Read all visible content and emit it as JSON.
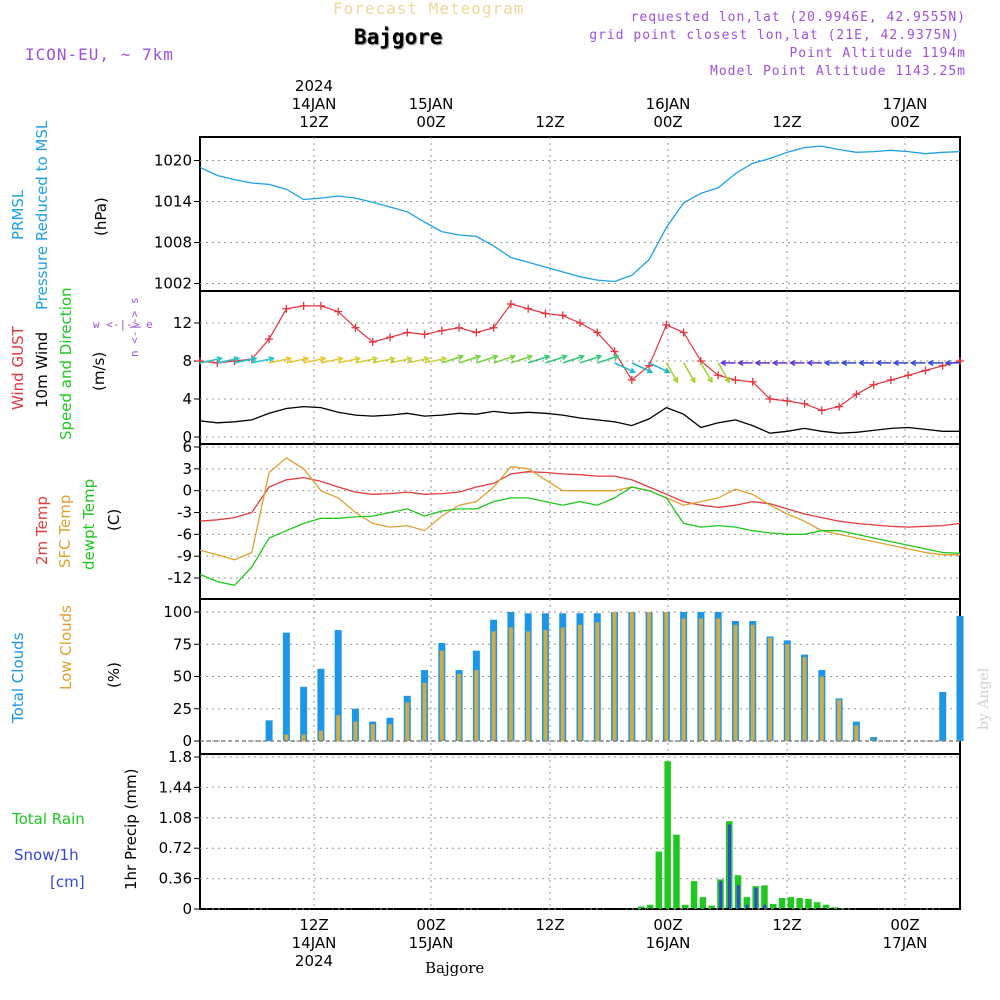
{
  "header": {
    "title": "Forecast Meteogram",
    "location": "Bajgore",
    "model": "ICON-EU, ~ 7km",
    "requested": "requested lon,lat (20.9946E, 42.9555N)",
    "grid_point": "grid point closest lon,lat (21E, 42.9375N)",
    "point_altitude": "Point Altitude 1194m",
    "model_altitude": "Model Point Altitude 1143.25m",
    "footer_location": "Bajgore",
    "watermark": "by Angel",
    "wind_key": "w <-|-> e",
    "wind_key_ns": "n <-|-> s"
  },
  "top_time_labels": [
    {
      "line1": "2024",
      "line2": "14JAN",
      "line3": "12Z"
    },
    {
      "line1": "",
      "line2": "15JAN",
      "line3": "00Z"
    },
    {
      "line1": "",
      "line2": "",
      "line3": "12Z"
    },
    {
      "line1": "",
      "line2": "16JAN",
      "line3": "00Z"
    },
    {
      "line1": "",
      "line2": "",
      "line3": "12Z"
    },
    {
      "line1": "",
      "line2": "17JAN",
      "line3": "00Z"
    }
  ],
  "bottom_time_labels": [
    {
      "line1": "12Z",
      "line2": "14JAN",
      "line3": "2024"
    },
    {
      "line1": "00Z",
      "line2": "15JAN",
      "line3": ""
    },
    {
      "line1": "12Z",
      "line2": "",
      "line3": ""
    },
    {
      "line1": "00Z",
      "line2": "16JAN",
      "line3": ""
    },
    {
      "line1": "12Z",
      "line2": "",
      "line3": ""
    },
    {
      "line1": "00Z",
      "line2": "17JAN",
      "line3": ""
    }
  ],
  "panel_labels": {
    "pressure": {
      "title": "PRMSL",
      "subtitle": "Pressure Reduced to MSL",
      "unit": "(hPa)"
    },
    "wind": {
      "gust": "Wind GUST",
      "wind": "10m Wind",
      "speed": "Speed and Direction",
      "unit": "(m/s)"
    },
    "temp": {
      "t2m": "2m Temp",
      "sfc": "SFC Temp",
      "dewpt": "dewpt Temp",
      "unit": "(C)"
    },
    "clouds": {
      "total": "Total Clouds",
      "low": "Low Clouds",
      "unit": "(%)"
    },
    "precip": {
      "rain": "Total  Rain",
      "snow": "Snow/1h",
      "cm": "[cm]",
      "unit": "1hr Precip (mm)"
    }
  },
  "colors": {
    "pressure": "#1ea0e6",
    "gust": "#e6323c",
    "wind": "#000000",
    "t2m": "#e63c3c",
    "sfc": "#e0a030",
    "dewpt": "#1ec81e",
    "total_cloud": "#1e96e6",
    "low_cloud": "#d2aa46",
    "rain": "#1ec81e",
    "snow": "#3246dc",
    "title": "#f0d79b",
    "info": "#a050dc"
  },
  "chart_data": [
    {
      "type": "line",
      "name": "pressure",
      "title": "PRMSL Pressure Reduced to MSL",
      "ylabel": "hPa",
      "ylim": [
        1001,
        1024
      ],
      "yticks": [
        1002,
        1008,
        1014,
        1020
      ],
      "x_hours": [
        0,
        3,
        6,
        9,
        12,
        15,
        18,
        21,
        24,
        27,
        30,
        33,
        36,
        39,
        42,
        45,
        48,
        51,
        54,
        57,
        60,
        63,
        66,
        69,
        72,
        75,
        78,
        81,
        84,
        87,
        90,
        93,
        96,
        99,
        102,
        105,
        108,
        111,
        114,
        117,
        120,
        123,
        126,
        129,
        132
      ],
      "series": [
        {
          "name": "PRMSL",
          "values": [
            1019,
            1017.8,
            1017.2,
            1016.7,
            1016.5,
            1015.8,
            1014.3,
            1014.5,
            1014.8,
            1014.5,
            1013.9,
            1013.2,
            1012.5,
            1011,
            1009.6,
            1009.1,
            1008.9,
            1007.5,
            1005.8,
            1005.1,
            1004.4,
            1003.7,
            1003.0,
            1002.5,
            1002.3,
            1003.2,
            1005.5,
            1010.2,
            1013.8,
            1015.2,
            1016.0,
            1018.1,
            1019.6,
            1020.3,
            1021.2,
            1021.9,
            1022.1,
            1021.6,
            1021.2,
            1021.3,
            1021.5,
            1021.3,
            1021.0,
            1021.2,
            1021.3
          ]
        }
      ]
    },
    {
      "type": "line",
      "name": "wind",
      "title": "Wind GUST / 10m Wind",
      "ylabel": "m/s",
      "ylim": [
        -0.5,
        15
      ],
      "yticks": [
        0,
        4,
        8,
        12
      ],
      "x_hours": [
        0,
        3,
        6,
        9,
        12,
        15,
        18,
        21,
        24,
        27,
        30,
        33,
        36,
        39,
        42,
        45,
        48,
        51,
        54,
        57,
        60,
        63,
        66,
        69,
        72,
        75,
        78,
        81,
        84,
        87,
        90,
        93,
        96,
        99,
        102,
        105,
        108,
        111,
        114,
        117,
        120,
        123,
        126,
        129,
        132
      ],
      "series": [
        {
          "name": "Wind GUST",
          "values": [
            8.0,
            7.8,
            8.0,
            8.2,
            10.3,
            13.5,
            13.8,
            13.8,
            13.2,
            11.5,
            10.0,
            10.5,
            11.0,
            10.8,
            11.2,
            11.5,
            11.0,
            11.5,
            14.0,
            13.5,
            13.0,
            12.8,
            12.0,
            11.0,
            9.0,
            6.0,
            7.5,
            11.8,
            11.0,
            8.0,
            6.5,
            6.0,
            5.8,
            4.0,
            3.8,
            3.5,
            2.8,
            3.2,
            4.5,
            5.5,
            6.0,
            6.5,
            7.0,
            7.5,
            8.0
          ]
        },
        {
          "name": "10m Wind",
          "values": [
            1.7,
            1.5,
            1.6,
            1.8,
            2.5,
            3.0,
            3.2,
            3.1,
            2.6,
            2.3,
            2.2,
            2.3,
            2.5,
            2.2,
            2.3,
            2.5,
            2.4,
            2.7,
            2.5,
            2.6,
            2.5,
            2.3,
            2.0,
            1.8,
            1.6,
            1.2,
            1.9,
            3.1,
            2.4,
            1.0,
            1.5,
            1.8,
            1.2,
            0.4,
            0.6,
            0.9,
            0.6,
            0.4,
            0.5,
            0.7,
            0.9,
            1.0,
            0.8,
            0.6,
            0.6
          ]
        }
      ]
    },
    {
      "type": "line",
      "name": "temperature",
      "title": "2m / SFC / dewpt Temp",
      "ylabel": "C",
      "ylim": [
        -14,
        6
      ],
      "yticks": [
        -12,
        -9,
        -6,
        -3,
        0,
        3,
        6
      ],
      "x_hours": [
        0,
        3,
        6,
        9,
        12,
        15,
        18,
        21,
        24,
        27,
        30,
        33,
        36,
        39,
        42,
        45,
        48,
        51,
        54,
        57,
        60,
        63,
        66,
        69,
        72,
        75,
        78,
        81,
        84,
        87,
        90,
        93,
        96,
        99,
        102,
        105,
        108,
        111,
        114,
        117,
        120,
        123,
        126,
        129,
        132
      ],
      "series": [
        {
          "name": "2m Temp",
          "values": [
            -4.2,
            -4.0,
            -3.7,
            -3.0,
            0.5,
            1.5,
            1.8,
            1.3,
            0.5,
            -0.2,
            -0.5,
            -0.4,
            -0.2,
            -0.5,
            -0.4,
            -0.2,
            0.5,
            1.0,
            2.3,
            2.6,
            2.5,
            2.3,
            2.2,
            2.0,
            2.0,
            1.5,
            0.5,
            -0.5,
            -1.5,
            -2.0,
            -2.3,
            -2.0,
            -1.5,
            -1.8,
            -2.5,
            -3.2,
            -3.7,
            -4.2,
            -4.5,
            -4.7,
            -4.9,
            -5.0,
            -4.9,
            -4.8,
            -4.5
          ]
        },
        {
          "name": "SFC Temp",
          "values": [
            -8.2,
            -8.8,
            -9.5,
            -8.5,
            2.5,
            4.5,
            3.0,
            0.0,
            -1.0,
            -3.0,
            -4.5,
            -5.0,
            -4.8,
            -5.5,
            -3.5,
            -2.0,
            -1.5,
            0.5,
            3.3,
            3.0,
            1.5,
            0.0,
            0.0,
            0.0,
            0.0,
            0.5,
            0.0,
            -1.0,
            -2.0,
            -1.5,
            -1.0,
            0.2,
            -0.5,
            -2.0,
            -3.2,
            -4.2,
            -5.5,
            -6.0,
            -6.5,
            -7.0,
            -7.5,
            -8.0,
            -8.5,
            -8.8,
            -8.8
          ]
        },
        {
          "name": "dewpt Temp",
          "values": [
            -11.5,
            -12.5,
            -13.0,
            -10.5,
            -6.5,
            -5.5,
            -4.5,
            -3.8,
            -3.8,
            -3.6,
            -3.5,
            -3.0,
            -2.5,
            -3.5,
            -2.8,
            -2.5,
            -2.5,
            -1.5,
            -1.0,
            -1.0,
            -1.5,
            -2.0,
            -1.5,
            -2.0,
            -1.0,
            0.5,
            0.0,
            -1.0,
            -4.5,
            -5.0,
            -4.8,
            -5.0,
            -5.5,
            -5.8,
            -6.0,
            -6.0,
            -5.5,
            -5.5,
            -6.0,
            -6.5,
            -7.0,
            -7.5,
            -8.0,
            -8.5,
            -8.6
          ]
        }
      ]
    },
    {
      "type": "bar",
      "name": "clouds",
      "title": "Total / Low Clouds",
      "ylabel": "%",
      "ylim": [
        0,
        100
      ],
      "yticks": [
        0,
        25,
        50,
        75,
        100
      ],
      "x_hours": [
        0,
        3,
        6,
        9,
        12,
        15,
        18,
        21,
        24,
        27,
        30,
        33,
        36,
        39,
        42,
        45,
        48,
        51,
        54,
        57,
        60,
        63,
        66,
        69,
        72,
        75,
        78,
        81,
        84,
        87,
        90,
        93,
        96,
        99,
        102,
        105,
        108,
        111,
        114,
        117,
        120,
        123,
        126,
        129,
        132
      ],
      "series": [
        {
          "name": "Total Clouds",
          "values": [
            0,
            0,
            0,
            0,
            16,
            84,
            42,
            56,
            86,
            25,
            15,
            18,
            35,
            55,
            76,
            55,
            70,
            94,
            100,
            99,
            99,
            99,
            99,
            99,
            100,
            100,
            100,
            100,
            100,
            100,
            100,
            93,
            93,
            81,
            78,
            67,
            55,
            33,
            15,
            3,
            0,
            0,
            0,
            38,
            97
          ]
        },
        {
          "name": "Low Clouds",
          "values": [
            0,
            0,
            0,
            0,
            0,
            5,
            5,
            8,
            20,
            15,
            13,
            13,
            30,
            45,
            70,
            52,
            55,
            85,
            88,
            85,
            86,
            88,
            90,
            92,
            100,
            100,
            100,
            100,
            95,
            95,
            95,
            90,
            90,
            80,
            75,
            65,
            50,
            32,
            12,
            1,
            0,
            0,
            0,
            0,
            0
          ]
        }
      ]
    },
    {
      "type": "bar",
      "name": "precip",
      "title": "1hr Precip",
      "ylabel": "mm",
      "ylim": [
        0,
        1.8
      ],
      "yticks": [
        0,
        0.36,
        0.72,
        1.08,
        1.44,
        1.8
      ],
      "x_hours": [
        72,
        73,
        74,
        75,
        76,
        77,
        78,
        79,
        80,
        81,
        82,
        83,
        84,
        85,
        86,
        87,
        88,
        89,
        90,
        91,
        92,
        93,
        94,
        95,
        96,
        97,
        98,
        99,
        100,
        101,
        102,
        103,
        104,
        105
      ],
      "series": [
        {
          "name": "Total Rain",
          "values": [
            0.03,
            0.05,
            0.68,
            1.75,
            0.88,
            0.05,
            0.33,
            0.14,
            0.04,
            0.35,
            1.04,
            0.4,
            0.14,
            0.27,
            0.28,
            0.06,
            0.13,
            0.14,
            0.13,
            0.12,
            0.08,
            0.05,
            0.02,
            0.01,
            0,
            0,
            0,
            0,
            0,
            0,
            0,
            0,
            0,
            0
          ]
        },
        {
          "name": "Snow/1h",
          "values": [
            0,
            0,
            0,
            0,
            0,
            0,
            0,
            0,
            0,
            0.33,
            1.0,
            0.28,
            0.05,
            0.25,
            0.05,
            0,
            0,
            0,
            0,
            0,
            0,
            0,
            0,
            0,
            0,
            0,
            0,
            0,
            0,
            0,
            0,
            0,
            0,
            0
          ]
        }
      ]
    }
  ]
}
